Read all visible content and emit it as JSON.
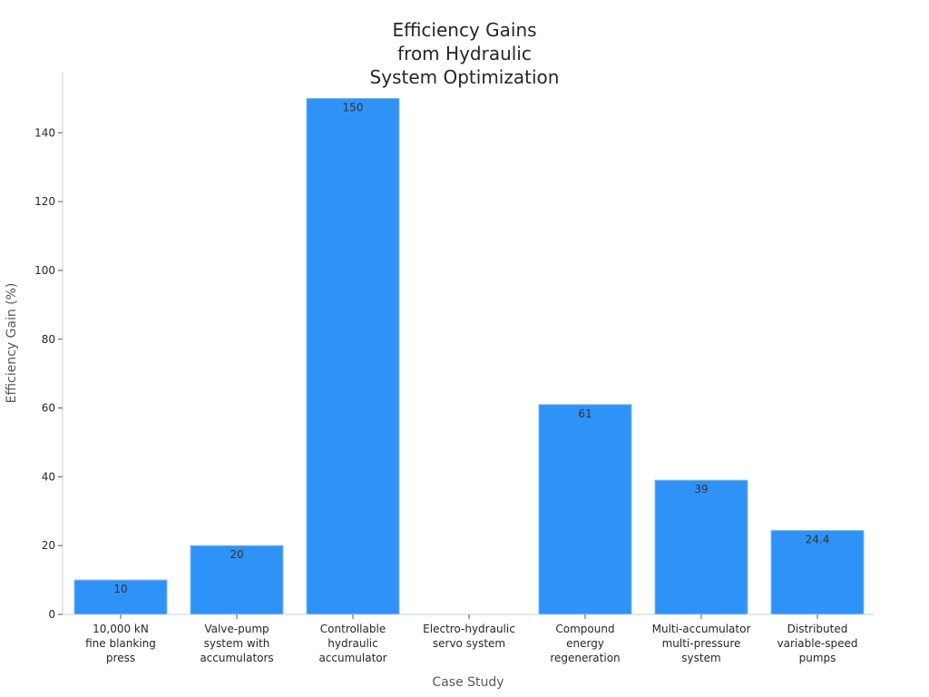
{
  "chart_data": {
    "type": "bar",
    "title_lines": [
      "Efficiency Gains",
      "from Hydraulic",
      "System Optimization"
    ],
    "xlabel": "Case Study",
    "ylabel": "Efficiency Gain (%)",
    "categories": [
      [
        "10,000 kN",
        "fine blanking",
        "press"
      ],
      [
        "Valve-pump",
        "system with",
        "accumulators"
      ],
      [
        "Controllable",
        "hydraulic",
        "accumulator"
      ],
      [
        "Electro-hydraulic",
        "servo system"
      ],
      [
        "Compound",
        "energy",
        "regeneration"
      ],
      [
        "Multi-accumulator",
        "multi-pressure",
        "system"
      ],
      [
        "Distributed",
        "variable-speed",
        "pumps"
      ]
    ],
    "values": [
      10,
      20,
      150,
      null,
      61,
      39,
      24.4
    ],
    "value_labels": [
      "10",
      "20",
      "150",
      "",
      "61",
      "39",
      "24.4"
    ],
    "ylim": [
      0,
      157.5
    ],
    "yticks": [
      0,
      20,
      40,
      60,
      80,
      100,
      120,
      140
    ],
    "bar_color": "#2f92f7",
    "bar_edge_color": "#7fbcf9",
    "grid": false,
    "legend": "none"
  }
}
